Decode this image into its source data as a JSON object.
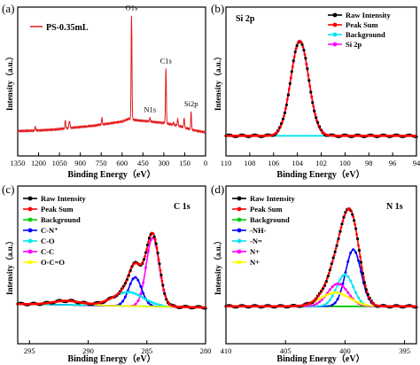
{
  "figure": {
    "panels": [
      {
        "letter": "(a)"
      },
      {
        "letter": "(b)"
      },
      {
        "letter": "(c)"
      },
      {
        "letter": "(d)"
      }
    ]
  },
  "chart_data": [
    {
      "type": "line",
      "panel": "(a)",
      "xlabel": "Binding Energy（eV）",
      "ylabel": "Intensity（a.u.）",
      "xlim": [
        1350,
        0
      ],
      "x_reversed": true,
      "xticks": [
        1350,
        1200,
        1050,
        900,
        750,
        600,
        450,
        300,
        150,
        0
      ],
      "xtick_labels": [
        "1350",
        "1200",
        "1050",
        "900",
        "750",
        "600",
        "450",
        "300",
        "150",
        "0"
      ],
      "legend": {
        "position": "top-left",
        "entries": [
          {
            "label": "PS-0.35mL",
            "color": "#e41a1c"
          }
        ]
      },
      "annotations": [
        {
          "text": "O1s",
          "x": 532
        },
        {
          "text": "C1s",
          "x": 285
        },
        {
          "text": "N1s",
          "x": 400
        },
        {
          "text": "Si2p",
          "x": 104
        }
      ],
      "series": [
        {
          "name": "PS-0.35mL",
          "color": "#e41a1c",
          "baseline": [
            [
              1350,
              0.13
            ],
            [
              1200,
              0.135
            ],
            [
              1100,
              0.14
            ],
            [
              1000,
              0.15
            ],
            [
              900,
              0.16
            ],
            [
              800,
              0.17
            ],
            [
              700,
              0.185
            ],
            [
              600,
              0.2
            ],
            [
              550,
              0.22
            ],
            [
              500,
              0.21
            ],
            [
              400,
              0.2
            ],
            [
              300,
              0.19
            ],
            [
              200,
              0.17
            ],
            [
              100,
              0.14
            ],
            [
              0,
              0.12
            ]
          ],
          "peaks": [
            {
              "x": 1224,
              "h": 0.03,
              "w": 3
            },
            {
              "x": 1008,
              "h": 0.06,
              "w": 3
            },
            {
              "x": 978,
              "h": 0.05,
              "w": 4
            },
            {
              "x": 745,
              "h": 0.05,
              "w": 3
            },
            {
              "x": 532,
              "h": 0.76,
              "w": 3
            },
            {
              "x": 400,
              "h": 0.03,
              "w": 3
            },
            {
              "x": 285,
              "h": 0.4,
              "w": 3
            },
            {
              "x": 230,
              "h": 0.02,
              "w": 3
            },
            {
              "x": 200,
              "h": 0.05,
              "w": 3
            },
            {
              "x": 154,
              "h": 0.07,
              "w": 3
            },
            {
              "x": 104,
              "h": 0.13,
              "w": 3
            }
          ]
        }
      ]
    },
    {
      "type": "line",
      "panel": "(b)",
      "title": "Si 2p",
      "xlabel": "Binding Energy（eV）",
      "ylabel": "Intensity（a.u.）",
      "xlim": [
        110,
        94
      ],
      "x_reversed": true,
      "xticks": [
        110,
        108,
        106,
        104,
        102,
        100,
        98,
        96,
        94
      ],
      "xtick_labels": [
        "110",
        "108",
        "106",
        "104",
        "102",
        "100",
        "98",
        "96",
        "94"
      ],
      "legend": {
        "position": "top-right",
        "entries": [
          {
            "label": "Raw Intensity",
            "color": "#000000",
            "marker": "circle"
          },
          {
            "label": "Peak Sum",
            "color": "#ff0000"
          },
          {
            "label": "Background",
            "color": "#00e5ee"
          },
          {
            "label": "Si 2p",
            "color": "#ff00ff"
          }
        ]
      },
      "components": [
        {
          "name": "Si 2p",
          "center": 103.8,
          "height": 0.8,
          "sigma": 0.75,
          "color": "#ff00ff"
        }
      ],
      "background": {
        "color": "#00e5ee",
        "start": 0.05,
        "end": 0.05
      }
    },
    {
      "type": "line",
      "panel": "(c)",
      "title": "C 1s",
      "xlabel": "Binding Energy（eV）",
      "ylabel": "Intensity（a.u.）",
      "xlim": [
        296,
        280
      ],
      "x_reversed": true,
      "xticks": [
        295,
        290,
        285,
        280
      ],
      "xtick_labels": [
        "295",
        "290",
        "285",
        "280"
      ],
      "legend": {
        "position": "top-left",
        "entries": [
          {
            "label": "Raw Intensity",
            "color": "#000000",
            "marker": "circle"
          },
          {
            "label": "Peak Sum",
            "color": "#ff0000"
          },
          {
            "label": "Background",
            "color": "#00cc00"
          },
          {
            "label": "C-N⁺",
            "color": "#0000ff"
          },
          {
            "label": "C-O",
            "color": "#00e5ee"
          },
          {
            "label": "C-C",
            "color": "#ff00ff"
          },
          {
            "label": "O-C=O",
            "color": "#ffff00"
          }
        ]
      },
      "components": [
        {
          "name": "C-C",
          "center": 284.5,
          "height": 0.6,
          "sigma": 0.55,
          "color": "#ff00ff"
        },
        {
          "name": "C-N⁺",
          "center": 286.0,
          "height": 0.25,
          "sigma": 0.55,
          "color": "#0000ff"
        },
        {
          "name": "C-O",
          "center": 286.6,
          "height": 0.12,
          "sigma": 1.3,
          "color": "#00e5ee"
        },
        {
          "name": "O-C=O",
          "center": 291.8,
          "height": 0.035,
          "sigma": 1.2,
          "color": "#ffff00"
        }
      ],
      "background": {
        "color": "#00cc00",
        "start": 0.13,
        "end": 0.1
      }
    },
    {
      "type": "line",
      "panel": "(d)",
      "title": "N 1s",
      "xlabel": "Binding Energy（eV）",
      "ylabel": "Intensity（a.u.）",
      "xlim": [
        410,
        394
      ],
      "x_reversed": true,
      "xticks": [
        410,
        405,
        400,
        395
      ],
      "xtick_labels": [
        "410",
        "405",
        "400",
        "395"
      ],
      "legend": {
        "position": "top-left",
        "entries": [
          {
            "label": "Raw Intensity",
            "color": "#000000",
            "marker": "circle"
          },
          {
            "label": "Peak Sum",
            "color": "#ff0000"
          },
          {
            "label": "Background",
            "color": "#00cc00"
          },
          {
            "label": "-NH-",
            "color": "#0000ff"
          },
          {
            "label": "-N=",
            "color": "#00e5ee"
          },
          {
            "label": "N+",
            "color": "#ff00ff"
          },
          {
            "label": "N+",
            "color": "#ffff00"
          }
        ]
      },
      "components": [
        {
          "name": "-NH-",
          "center": 399.3,
          "height": 0.5,
          "sigma": 0.65,
          "color": "#0000ff"
        },
        {
          "name": "-N=",
          "center": 400.0,
          "height": 0.28,
          "sigma": 0.7,
          "color": "#00e5ee"
        },
        {
          "name": "N+",
          "center": 400.6,
          "height": 0.2,
          "sigma": 0.85,
          "color": "#ff00ff"
        },
        {
          "name": "N+",
          "center": 400.8,
          "height": 0.12,
          "sigma": 1.2,
          "color": "#ffff00"
        }
      ],
      "background": {
        "color": "#00cc00",
        "start": 0.08,
        "end": 0.08
      }
    }
  ]
}
